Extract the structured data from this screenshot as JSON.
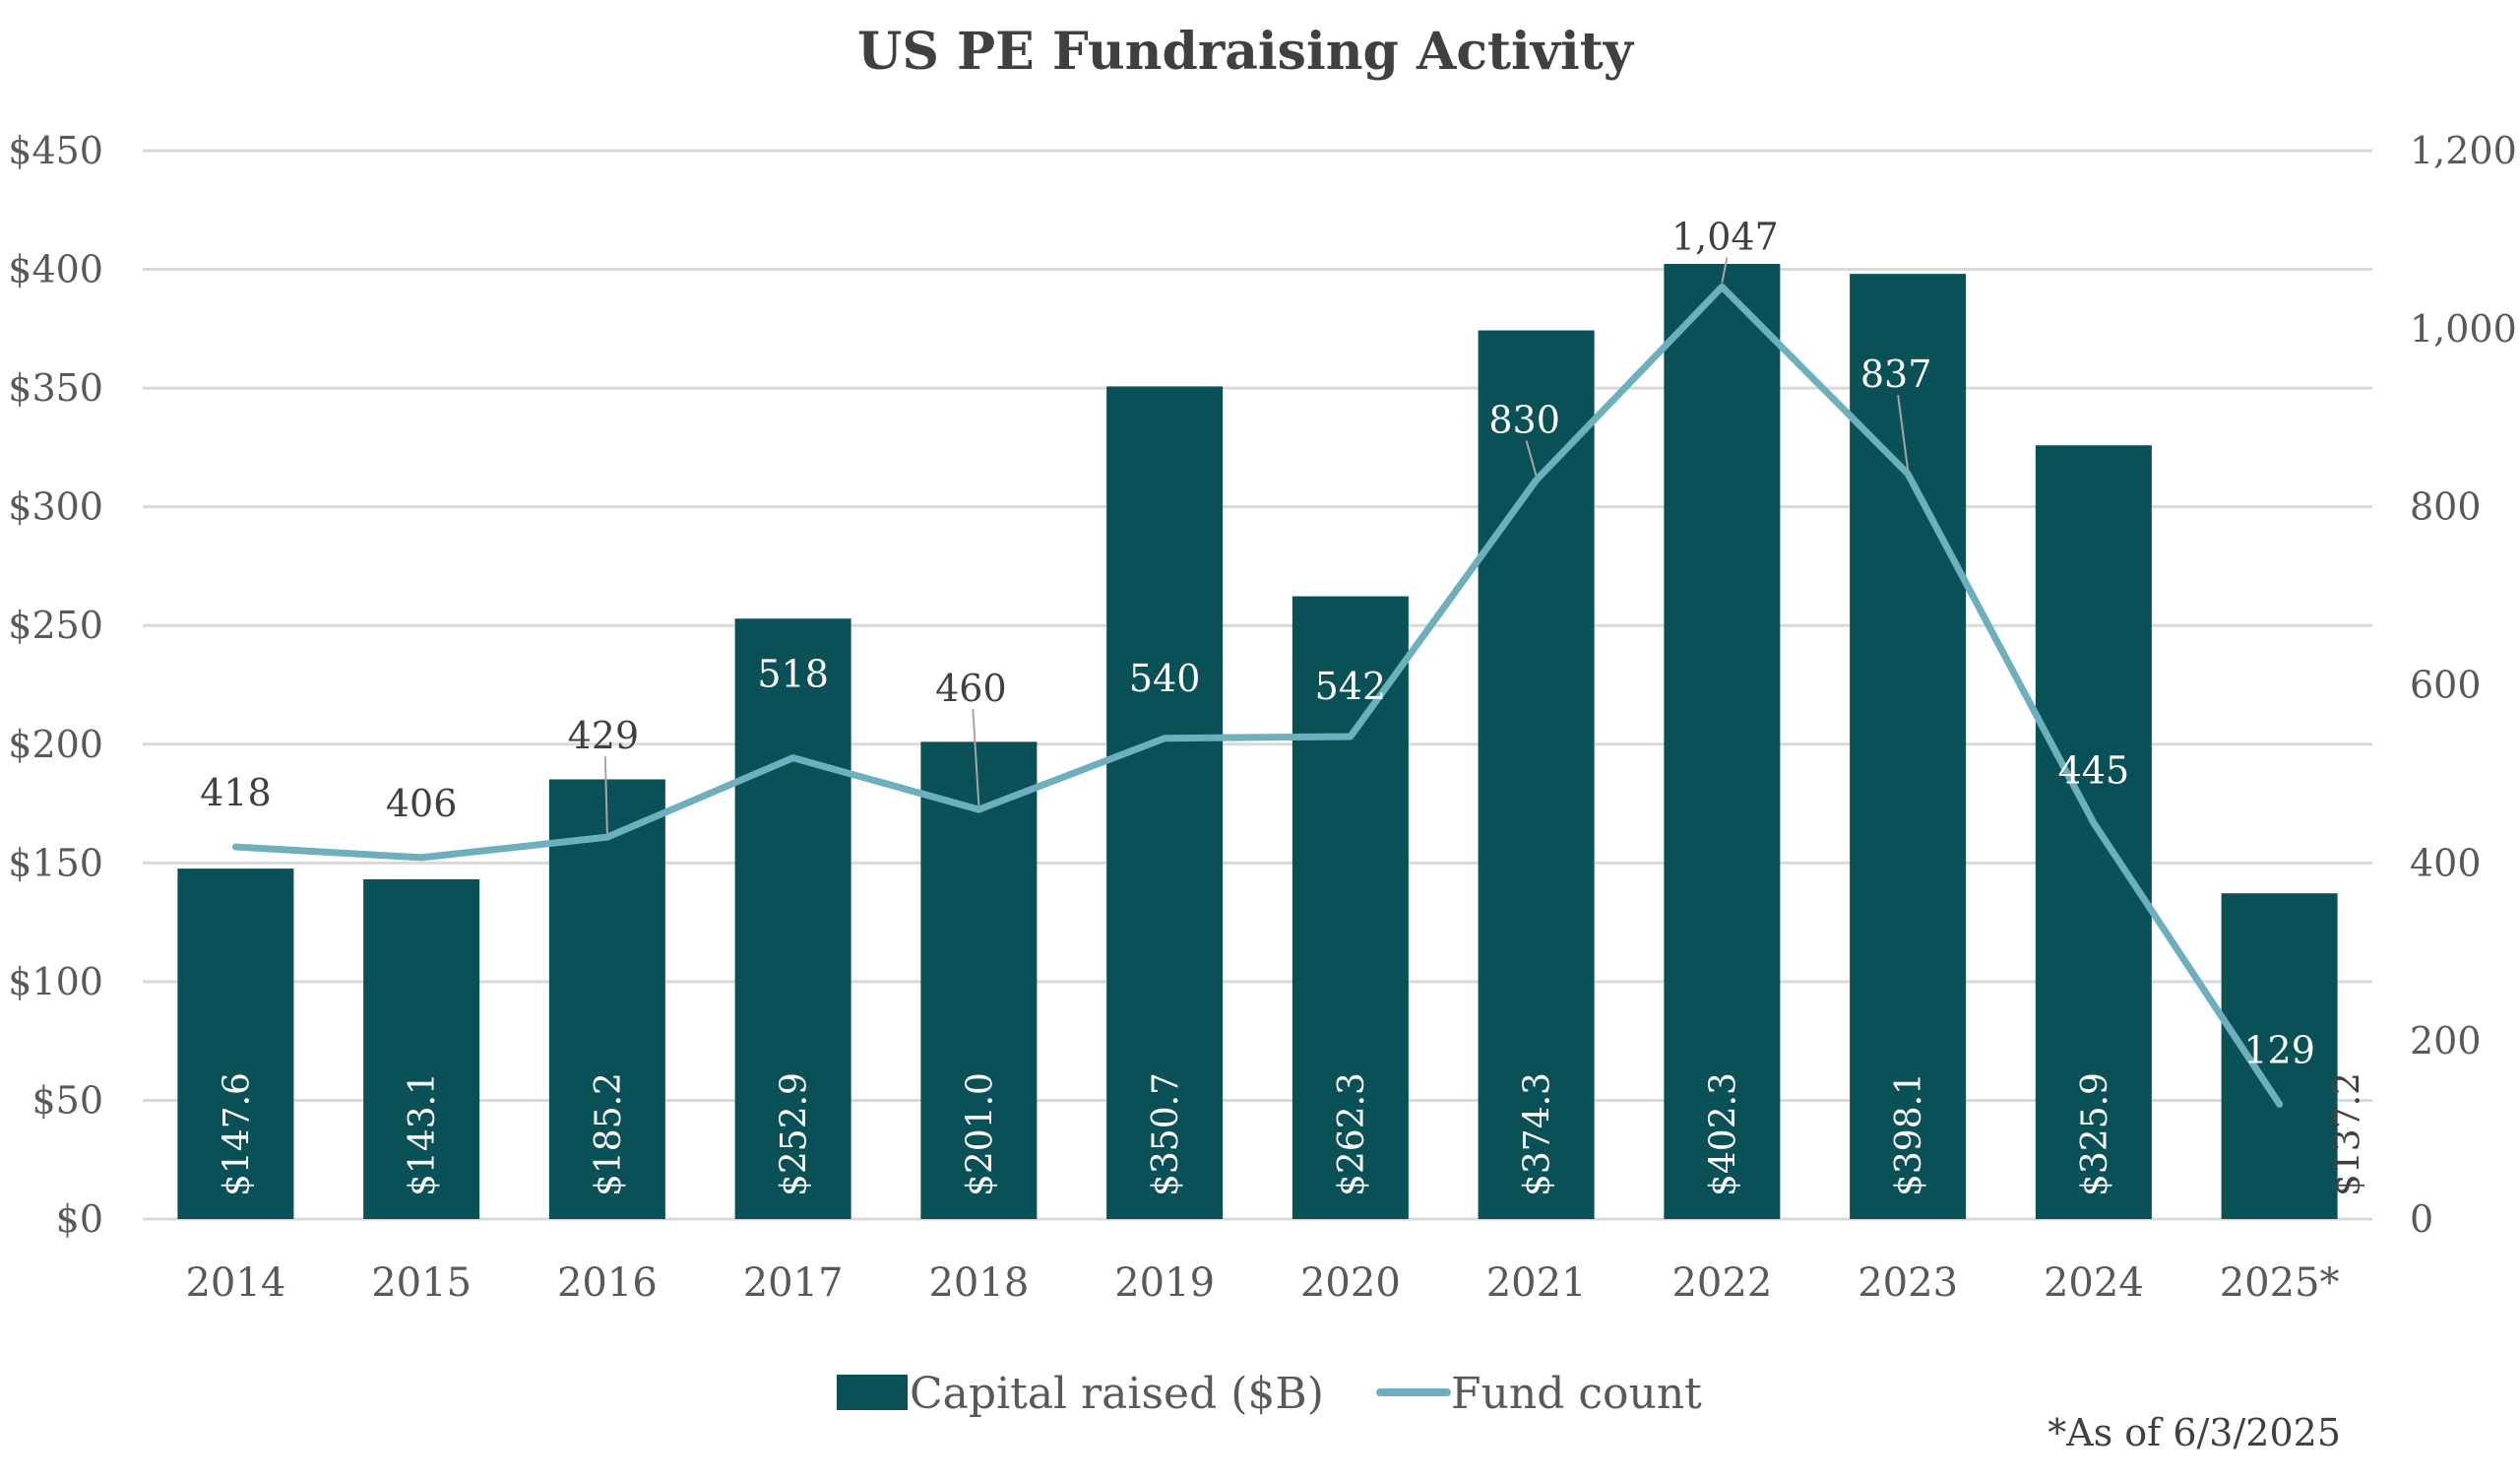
{
  "chart_data": {
    "type": "bar+line",
    "title": "US PE Fundraising Activity",
    "categories": [
      "2014",
      "2015",
      "2016",
      "2017",
      "2018",
      "2019",
      "2020",
      "2021",
      "2022",
      "2023",
      "2024",
      "2025*"
    ],
    "series": [
      {
        "name": "Capital raised ($B)",
        "type": "bar",
        "axis": "left",
        "color": "#0a5157",
        "values": [
          147.6,
          143.1,
          185.2,
          252.9,
          201.0,
          350.7,
          262.3,
          374.3,
          402.3,
          398.1,
          325.9,
          137.2
        ],
        "labels": [
          "$147.6",
          "$143.1",
          "$185.2",
          "$252.9",
          "$201.0",
          "$350.7",
          "$262.3",
          "$374.3",
          "$402.3",
          "$398.1",
          "$325.9",
          "$137.2"
        ]
      },
      {
        "name": "Fund count",
        "type": "line",
        "axis": "right",
        "color": "#6eafbd",
        "values": [
          418,
          406,
          429,
          518,
          460,
          540,
          542,
          830,
          1047,
          837,
          445,
          129
        ],
        "labels": [
          "418",
          "406",
          "429",
          "518",
          "460",
          "540",
          "542",
          "830",
          "1,047",
          "837",
          "445",
          "129"
        ]
      }
    ],
    "y_left": {
      "range": [
        0,
        450
      ],
      "ticks": [
        "$0",
        "$50",
        "$100",
        "$150",
        "$200",
        "$250",
        "$300",
        "$350",
        "$400",
        "$450"
      ],
      "tick_values": [
        0,
        50,
        100,
        150,
        200,
        250,
        300,
        350,
        400,
        450
      ]
    },
    "y_right": {
      "range": [
        0,
        1200
      ],
      "ticks": [
        "0",
        "200",
        "400",
        "600",
        "800",
        "1,000",
        "1,200"
      ],
      "tick_values": [
        0,
        200,
        400,
        600,
        800,
        1000,
        1200
      ]
    },
    "grid": true,
    "legend": {
      "position": "bottom",
      "items": [
        "Capital raised ($B)",
        "Fund count"
      ]
    },
    "footnote": "*As of 6/3/2025"
  }
}
